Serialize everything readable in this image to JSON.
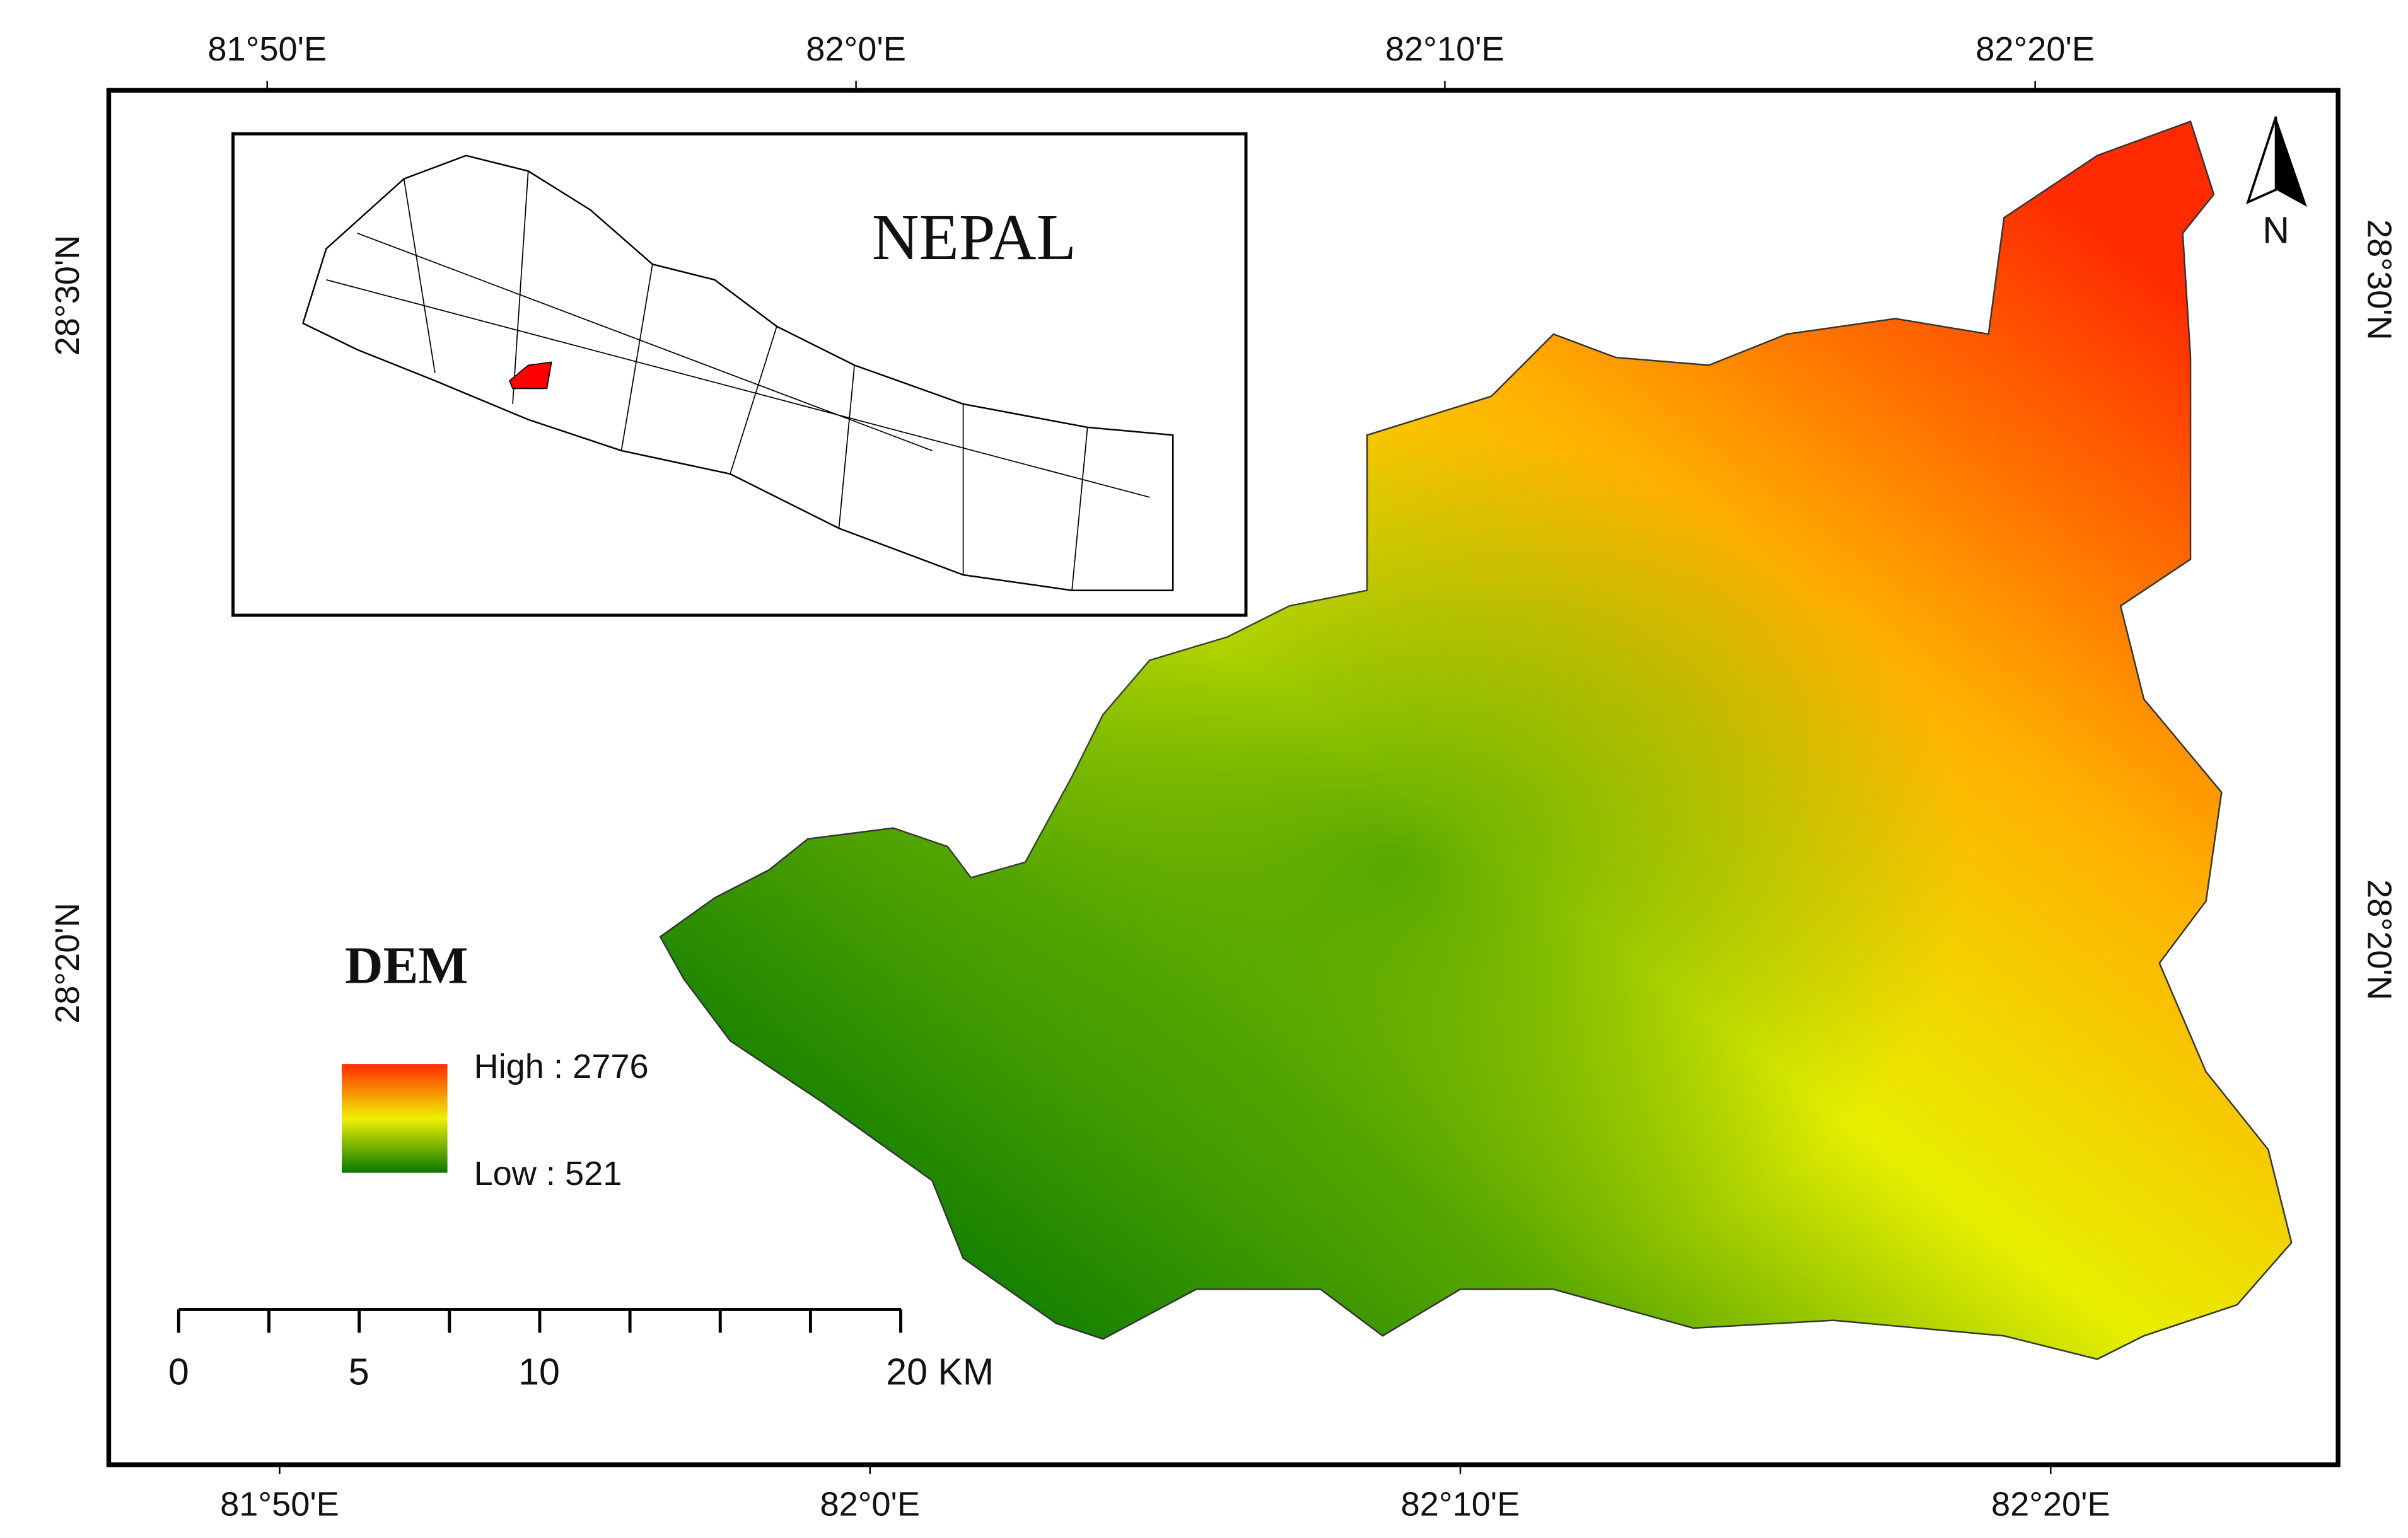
{
  "graticule": {
    "top": [
      "81°50'E",
      "82°0'E",
      "82°10'E",
      "82°20'E"
    ],
    "bottom": [
      "81°50'E",
      "82°0'E",
      "82°10'E",
      "82°20'E"
    ],
    "left": [
      "28°30'N",
      "28°20'N"
    ],
    "right": [
      "28°30'N",
      "28°20'N"
    ]
  },
  "inset": {
    "title": "NEPAL"
  },
  "legend": {
    "title": "DEM",
    "high": "High : 2776",
    "low": "Low : 521"
  },
  "scale_bar": {
    "labels": [
      "0",
      "5",
      "10",
      "20 KM"
    ]
  },
  "north_arrow": {
    "label": "N"
  }
}
